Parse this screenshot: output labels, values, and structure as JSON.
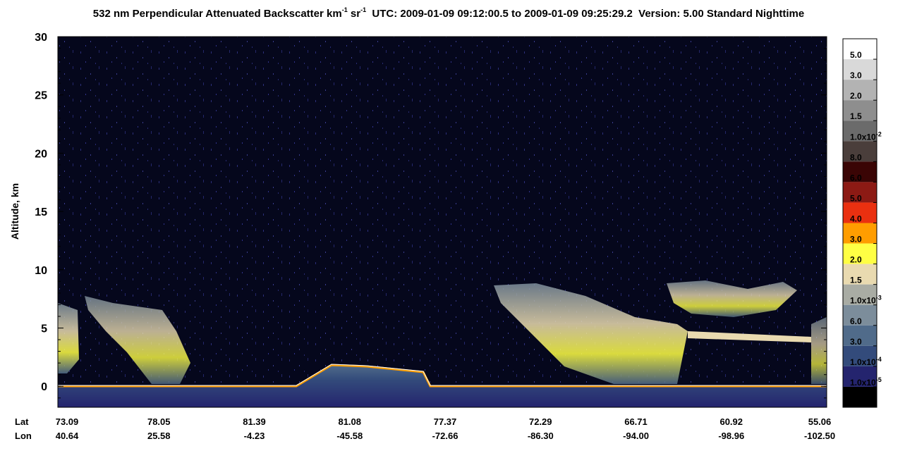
{
  "chart_data": {
    "type": "heatmap",
    "title": [
      {
        "text": "532 nm Perpendicular Attenuated Backscatter km"
      },
      {
        "sup": "-1"
      },
      {
        "text": " sr"
      },
      {
        "sup": "-1"
      },
      {
        "text": "  UTC: 2009-01-09 09:12:00.5 to 2009-01-09 09:25:29.2  Version: 5.00 Standard Nighttime"
      }
    ],
    "ylabel": "Altitude, km",
    "ylim": [
      -1.8,
      30
    ],
    "yticks": [
      0,
      5,
      10,
      15,
      20,
      25,
      30
    ],
    "x_rows": [
      {
        "name": "Lat",
        "categories": [
          "73.09",
          "78.05",
          "81.39",
          "81.08",
          "77.37",
          "72.29",
          "66.71",
          "60.92",
          "55.06"
        ]
      },
      {
        "name": "Lon",
        "categories": [
          "40.64",
          "25.58",
          "-4.23",
          "-45.58",
          "-72.66",
          "-86.30",
          "-94.00",
          "-98.96",
          "-102.50"
        ]
      }
    ],
    "colorbar": {
      "colors": [
        "#ffffff",
        "#d9d9d9",
        "#b3b3b3",
        "#8e8e8e",
        "#6b6b6b",
        "#4a3e3b",
        "#3a0505",
        "#8c1a14",
        "#ea3010",
        "#ff9d00",
        "#ffff44",
        "#e9dab0",
        "#a9aca4",
        "#7c8d9b",
        "#506b8a",
        "#334b7b",
        "#24246e",
        "#000000"
      ],
      "labels": [
        {
          "text": "5.0"
        },
        {
          "text": "3.0"
        },
        {
          "text": "2.0"
        },
        {
          "text": "1.5"
        },
        {
          "text": "1.0x10",
          "sup": "-2"
        },
        {
          "text": "8.0"
        },
        {
          "text": "6.0"
        },
        {
          "text": "5.0"
        },
        {
          "text": "4.0"
        },
        {
          "text": "3.0"
        },
        {
          "text": "2.0"
        },
        {
          "text": "1.5"
        },
        {
          "text": "1.0x10",
          "sup": "-3"
        },
        {
          "text": "6.0"
        },
        {
          "text": "3.0"
        },
        {
          "text": "1.0x10",
          "sup": "-4"
        },
        {
          "text": "1.0x10",
          "sup": "-5"
        }
      ]
    }
  }
}
